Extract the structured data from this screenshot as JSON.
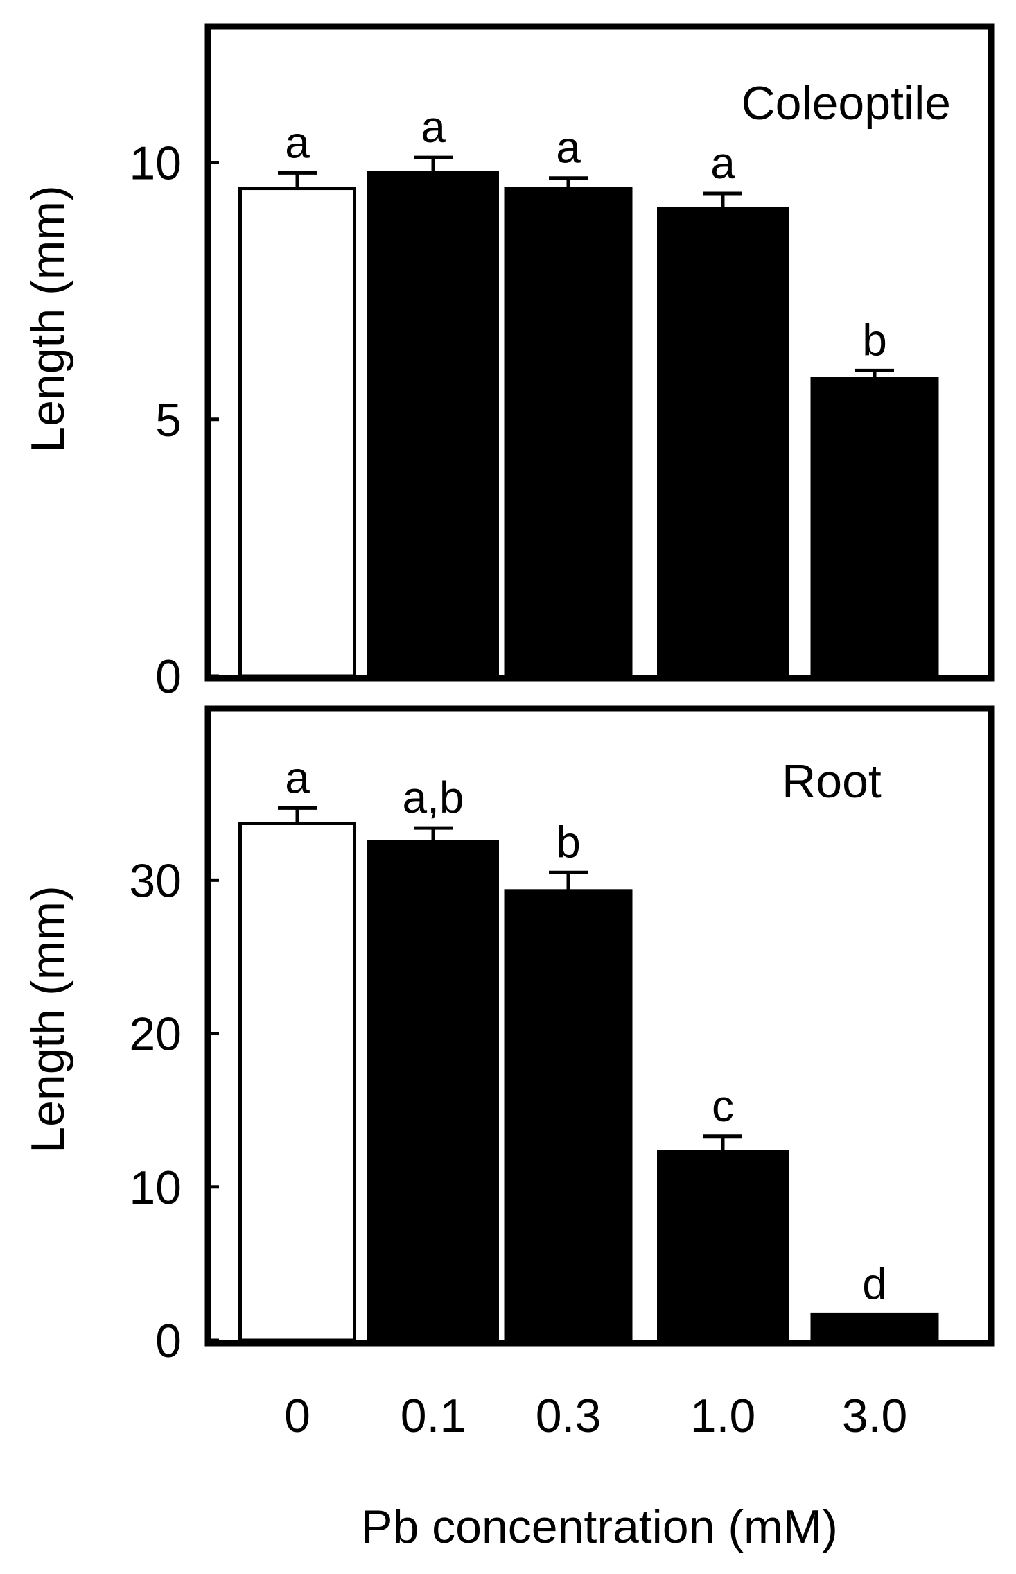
{
  "chart_data": [
    {
      "type": "bar",
      "panel_label": "Coleoptile",
      "ylabel": "Length (mm)",
      "xlabel": "",
      "categories": [
        "0",
        "0.1",
        "0.3",
        "1.0",
        "3.0"
      ],
      "ylim": [
        0,
        12.6
      ],
      "yticks": [
        0,
        5,
        10
      ],
      "ytick_labels": [
        "0",
        "5",
        "10"
      ],
      "series": [
        {
          "values": [
            9.5,
            9.8,
            9.5,
            9.1,
            5.8
          ],
          "errors": [
            0.3,
            0.3,
            0.2,
            0.3,
            0.15
          ],
          "fills": [
            "#ffffff",
            "#000000",
            "#000000",
            "#000000",
            "#000000"
          ]
        }
      ],
      "significance_labels": [
        "a",
        "a",
        "a",
        "a",
        "b"
      ],
      "grid": false,
      "show_x_tick_labels": false
    },
    {
      "type": "bar",
      "panel_label": "Root",
      "ylabel": "Length (mm)",
      "xlabel": "Pb concentration (mM)",
      "categories": [
        "0",
        "0.1",
        "0.3",
        "1.0",
        "3.0"
      ],
      "ylim": [
        0,
        41
      ],
      "yticks": [
        0,
        10,
        20,
        30
      ],
      "ytick_labels": [
        "0",
        "10",
        "20",
        "30"
      ],
      "series": [
        {
          "values": [
            33.7,
            32.5,
            29.3,
            12.3,
            1.7
          ],
          "errors": [
            1.0,
            0.9,
            1.2,
            1.0,
            0
          ],
          "fills": [
            "#ffffff",
            "#000000",
            "#000000",
            "#000000",
            "#000000"
          ]
        }
      ],
      "significance_labels": [
        "a",
        "a,b",
        "b",
        "c",
        "d"
      ],
      "grid": false,
      "show_x_tick_labels": true
    }
  ]
}
